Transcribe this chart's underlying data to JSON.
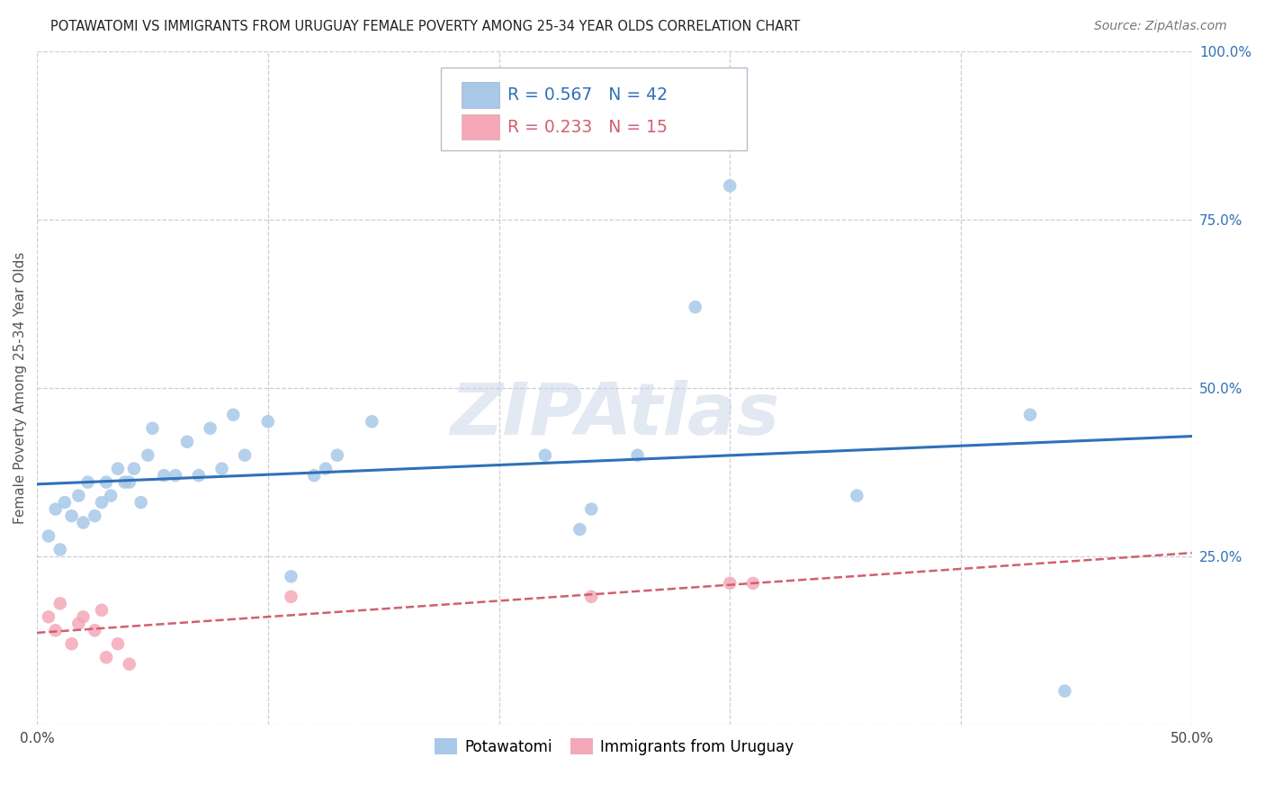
{
  "title": "POTAWATOMI VS IMMIGRANTS FROM URUGUAY FEMALE POVERTY AMONG 25-34 YEAR OLDS CORRELATION CHART",
  "source": "Source: ZipAtlas.com",
  "ylabel": "Female Poverty Among 25-34 Year Olds",
  "xlim": [
    0.0,
    0.5
  ],
  "ylim": [
    0.0,
    1.0
  ],
  "xticks": [
    0.0,
    0.1,
    0.2,
    0.3,
    0.4,
    0.5
  ],
  "yticks": [
    0.0,
    0.25,
    0.5,
    0.75,
    1.0
  ],
  "xticklabels": [
    "0.0%",
    "",
    "",
    "",
    "",
    "50.0%"
  ],
  "yticklabels": [
    "",
    "25.0%",
    "50.0%",
    "75.0%",
    "100.0%"
  ],
  "watermark": "ZIPAtlas",
  "potawatomi_R": 0.567,
  "potawatomi_N": 42,
  "uruguay_R": 0.233,
  "uruguay_N": 15,
  "legend_label1": "Potawatomi",
  "legend_label2": "Immigrants from Uruguay",
  "blue_color": "#a8c8e8",
  "pink_color": "#f4a8b8",
  "line_blue": "#3070b8",
  "line_pink": "#d06070",
  "potawatomi_x": [
    0.005,
    0.008,
    0.01,
    0.012,
    0.015,
    0.018,
    0.02,
    0.022,
    0.025,
    0.028,
    0.03,
    0.032,
    0.035,
    0.038,
    0.04,
    0.042,
    0.045,
    0.048,
    0.05,
    0.055,
    0.06,
    0.065,
    0.07,
    0.075,
    0.08,
    0.085,
    0.09,
    0.1,
    0.11,
    0.12,
    0.125,
    0.13,
    0.145,
    0.22,
    0.235,
    0.24,
    0.26,
    0.285,
    0.3,
    0.355,
    0.43,
    0.445
  ],
  "potawatomi_y": [
    0.28,
    0.32,
    0.26,
    0.33,
    0.31,
    0.34,
    0.3,
    0.36,
    0.31,
    0.33,
    0.36,
    0.34,
    0.38,
    0.36,
    0.36,
    0.38,
    0.33,
    0.4,
    0.44,
    0.37,
    0.37,
    0.42,
    0.37,
    0.44,
    0.38,
    0.46,
    0.4,
    0.45,
    0.22,
    0.37,
    0.38,
    0.4,
    0.45,
    0.4,
    0.29,
    0.32,
    0.4,
    0.62,
    0.8,
    0.34,
    0.46,
    0.05
  ],
  "uruguay_x": [
    0.005,
    0.008,
    0.01,
    0.015,
    0.018,
    0.02,
    0.025,
    0.028,
    0.03,
    0.035,
    0.04,
    0.11,
    0.24,
    0.3,
    0.31
  ],
  "uruguay_y": [
    0.16,
    0.14,
    0.18,
    0.12,
    0.15,
    0.16,
    0.14,
    0.17,
    0.1,
    0.12,
    0.09,
    0.19,
    0.19,
    0.21,
    0.21
  ],
  "background_color": "#ffffff",
  "grid_color": "#c8c8d0"
}
